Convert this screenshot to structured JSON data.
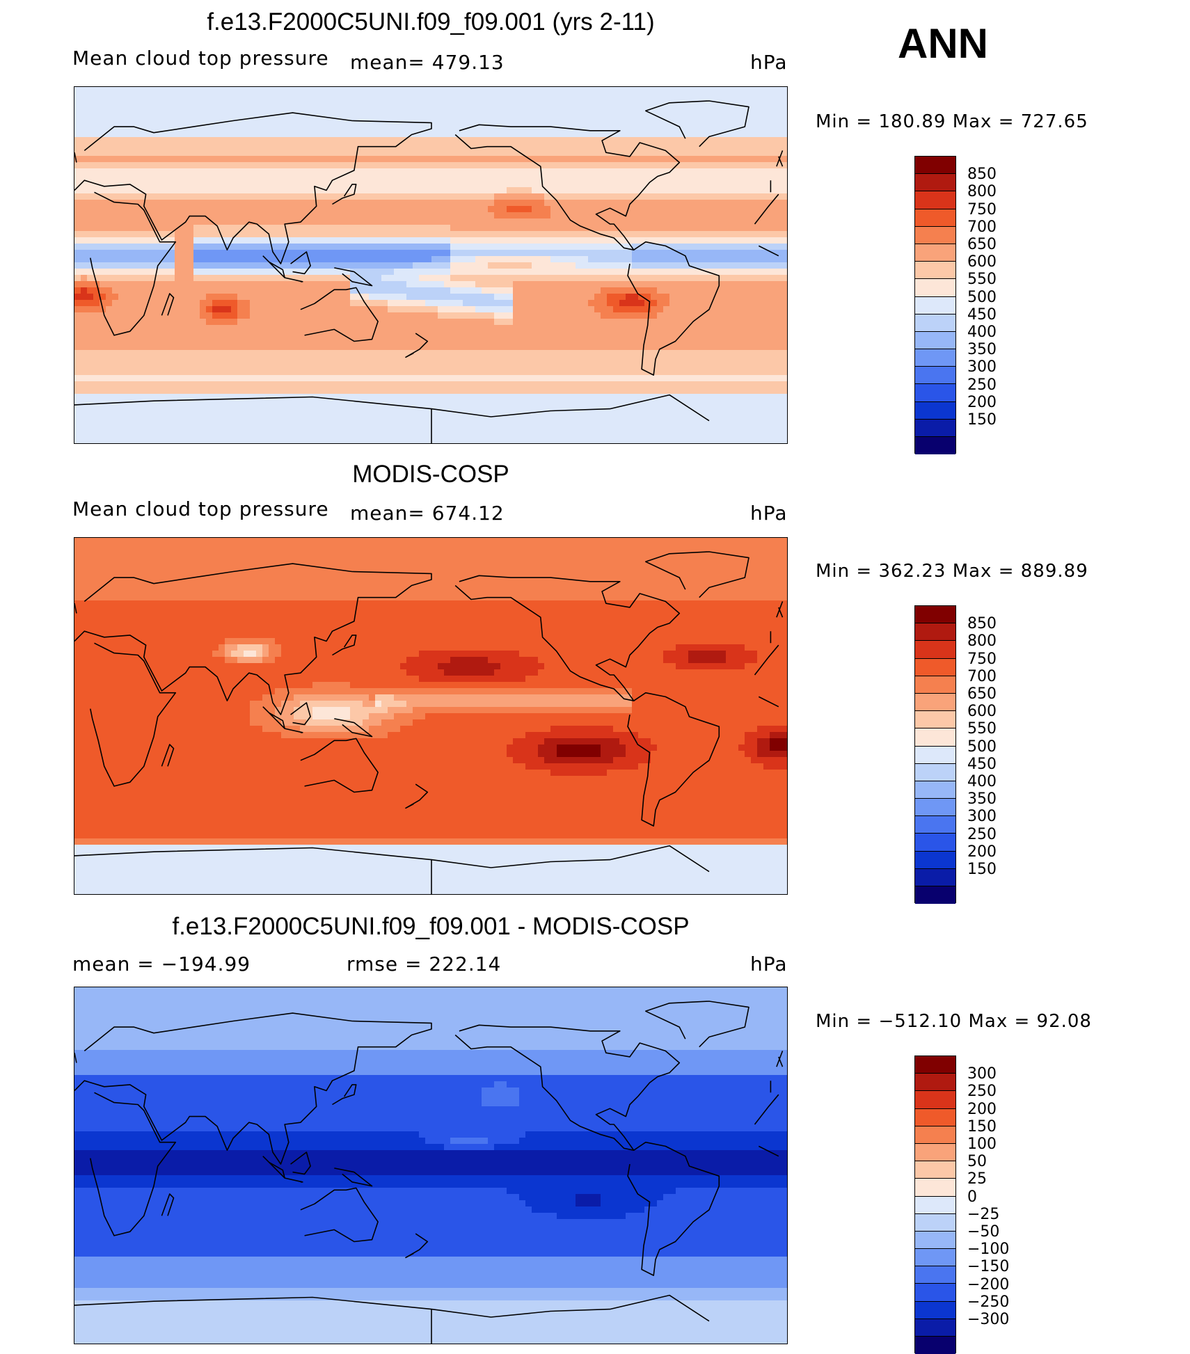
{
  "season": "ANN",
  "palette_abs": [
    "#08006e",
    "#0a1ca8",
    "#0b36d0",
    "#2a55e8",
    "#4a75f0",
    "#6f97f5",
    "#97b7f7",
    "#bcd2f8",
    "#dde8fa",
    "#fde6d8",
    "#fcc8a8",
    "#f9a37a",
    "#f5804f",
    "#ef5a2a",
    "#d9341a",
    "#b01a10",
    "#800000"
  ],
  "palette_diff": [
    "#08006e",
    "#0a1ca8",
    "#0b36d0",
    "#2a55e8",
    "#4a75f0",
    "#6f97f5",
    "#97b7f7",
    "#bcd2f8",
    "#dde8fa",
    "#fde6d8",
    "#fcc8a8",
    "#f9a37a",
    "#f5804f",
    "#ef5a2a",
    "#d9341a",
    "#b01a10",
    "#800000"
  ],
  "panels": [
    {
      "title": "f.e13.F2000C5UNI.f09_f09.001 (yrs 2-11)",
      "left_label": "Mean cloud top pressure",
      "center_label": "mean=  479.13",
      "units": "hPa",
      "minmax": "Min  =  180.89  Max  =  727.65",
      "levels": [
        "850",
        "800",
        "750",
        "700",
        "650",
        "600",
        "550",
        "500",
        "450",
        "400",
        "350",
        "300",
        "250",
        "200",
        "150"
      ],
      "field_type": "model"
    },
    {
      "title": "MODIS-COSP",
      "left_label": "Mean cloud top pressure",
      "center_label": "mean=  674.12",
      "units": "hPa",
      "minmax": "Min  =  362.23  Max  =  889.89",
      "levels": [
        "850",
        "800",
        "750",
        "700",
        "650",
        "600",
        "550",
        "500",
        "450",
        "400",
        "350",
        "300",
        "250",
        "200",
        "150"
      ],
      "field_type": "obs"
    },
    {
      "title": "f.e13.F2000C5UNI.f09_f09.001 - MODIS-COSP",
      "left_label": "mean  =  −194.99",
      "center_label": "rmse  =  222.14",
      "units": "hPa",
      "minmax": "Min  =  −512.10  Max  =    92.08",
      "levels": [
        "300",
        "250",
        "200",
        "150",
        "100",
        "50",
        "25",
        "0",
        "−25",
        "−50",
        "−100",
        "−150",
        "−200",
        "−250",
        "−300"
      ],
      "field_type": "diff"
    }
  ]
}
